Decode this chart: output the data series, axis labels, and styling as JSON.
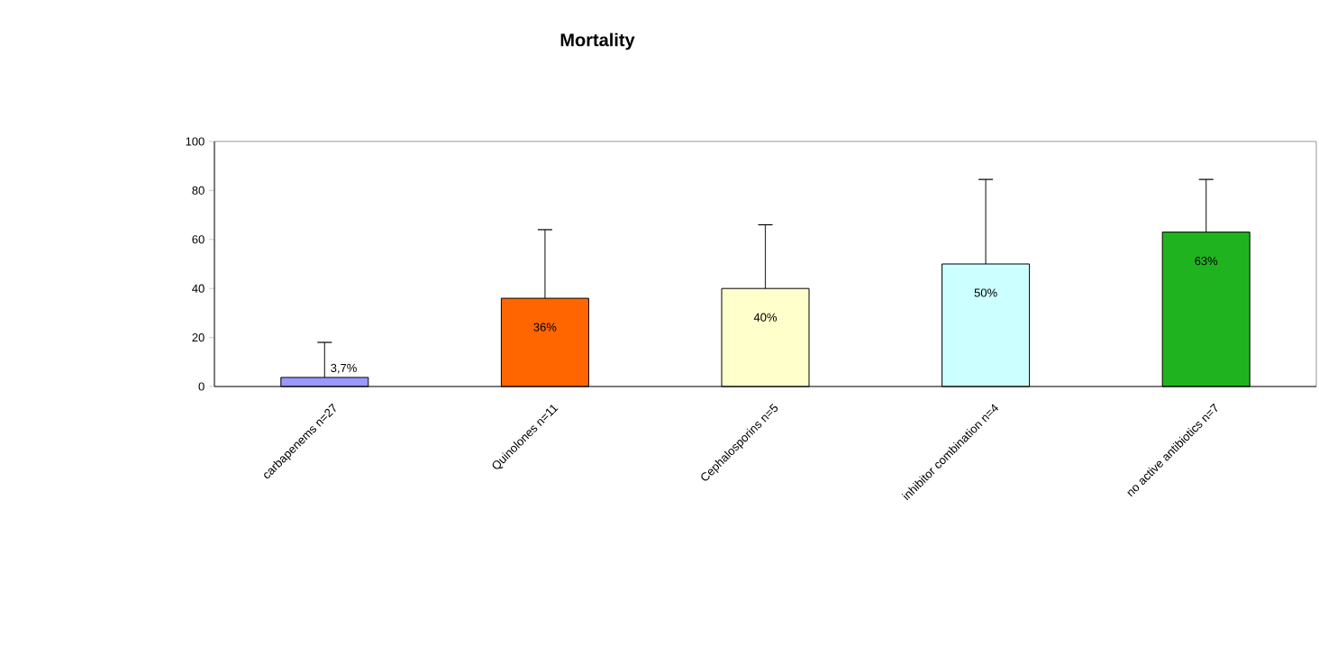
{
  "chart_data": {
    "type": "bar",
    "title": "Mortality",
    "categories": [
      "carbapenems n=27",
      "Quinolones n=11",
      "Cephalosporins n=5",
      "inhibitor combination n=4",
      "no active antibiotics n=7"
    ],
    "values": [
      3.7,
      36,
      40,
      50,
      63
    ],
    "colors": [
      "#9999ff",
      "#ff6600",
      "#ffffcc",
      "#ccffff",
      "#1fb41f"
    ],
    "errors": [
      [
        3.7,
        18
      ],
      [
        36,
        64
      ],
      [
        40,
        66
      ],
      [
        50,
        84.5
      ],
      [
        63,
        84.5
      ]
    ],
    "value_labels": [
      "3,7%",
      "36%",
      "40%",
      "50%",
      "63%"
    ],
    "ylim": [
      0,
      100
    ],
    "yticks": [
      0,
      20,
      40,
      60,
      80,
      100
    ],
    "grid": false
  }
}
